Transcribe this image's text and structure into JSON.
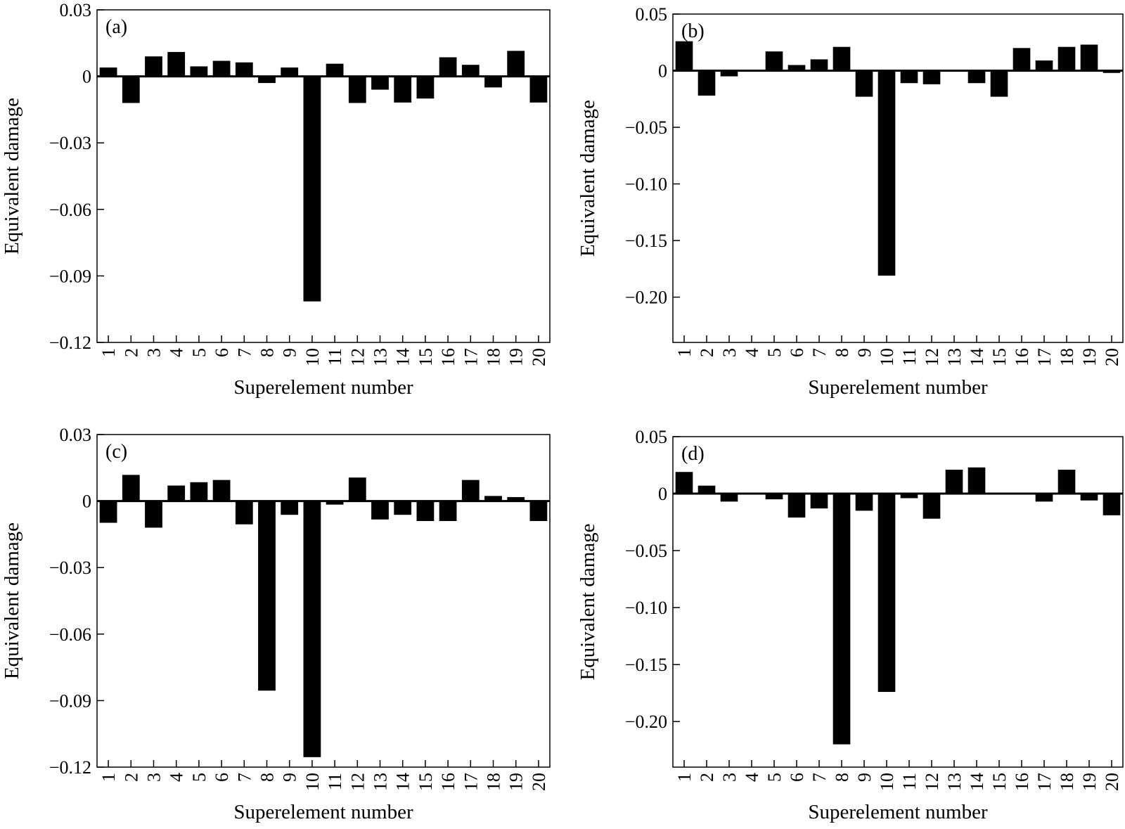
{
  "colors": {
    "bar": "#000000",
    "frame": "#000000",
    "background": "#ffffff"
  },
  "chart_data": [
    {
      "type": "bar",
      "panel_label": "(a)",
      "categories": [
        "1",
        "2",
        "3",
        "4",
        "5",
        "6",
        "7",
        "8",
        "9",
        "10",
        "11",
        "12",
        "13",
        "14",
        "15",
        "16",
        "17",
        "18",
        "19",
        "20"
      ],
      "values": [
        0.004,
        -0.012,
        0.009,
        0.011,
        0.0045,
        0.007,
        0.0063,
        -0.003,
        0.004,
        -0.1015,
        0.0057,
        -0.012,
        -0.006,
        -0.0118,
        -0.01,
        0.0086,
        0.0052,
        -0.005,
        0.0115,
        -0.0118
      ],
      "xlabel": "Superelement number",
      "ylabel": "Equivalent damage",
      "ylim": [
        -0.12,
        0.03
      ],
      "yticks": [
        0.03,
        0,
        -0.03,
        -0.06,
        -0.09,
        -0.12
      ],
      "ytick_labels": [
        "0.03",
        "0",
        "−0.03",
        "−0.06",
        "−0.09",
        "−0.12"
      ],
      "grid": false,
      "legend": "none"
    },
    {
      "type": "bar",
      "panel_label": "(b)",
      "categories": [
        "1",
        "2",
        "3",
        "4",
        "5",
        "6",
        "7",
        "8",
        "9",
        "10",
        "11",
        "12",
        "13",
        "14",
        "15",
        "16",
        "17",
        "18",
        "19",
        "20"
      ],
      "values": [
        0.026,
        -0.022,
        -0.005,
        0,
        0.017,
        0.005,
        0.01,
        0.021,
        -0.023,
        -0.181,
        -0.011,
        -0.012,
        0,
        -0.011,
        -0.023,
        0.02,
        0.009,
        0.021,
        0.023,
        -0.002
      ],
      "xlabel": "Superelement number",
      "ylabel": "Equivalent damage",
      "ylim": [
        -0.24,
        0.05
      ],
      "yticks": [
        0.05,
        0,
        -0.05,
        -0.1,
        -0.15,
        -0.2
      ],
      "ytick_labels": [
        "0.05",
        "0",
        "−0.05",
        "−0.10",
        "−0.15",
        "−0.20"
      ],
      "grid": false,
      "legend": "none"
    },
    {
      "type": "bar",
      "panel_label": "(c)",
      "categories": [
        "1",
        "2",
        "3",
        "4",
        "5",
        "6",
        "7",
        "8",
        "9",
        "10",
        "11",
        "12",
        "13",
        "14",
        "15",
        "16",
        "17",
        "18",
        "19",
        "20"
      ],
      "values": [
        -0.0098,
        0.0118,
        -0.012,
        0.007,
        0.0085,
        0.0095,
        -0.0105,
        -0.0855,
        -0.0062,
        -0.1155,
        -0.0016,
        0.0106,
        -0.0083,
        -0.0062,
        -0.009,
        -0.009,
        0.0095,
        0.0023,
        0.0018,
        -0.009
      ],
      "xlabel": "Superelement number",
      "ylabel": "Equivalent damage",
      "ylim": [
        -0.12,
        0.03
      ],
      "yticks": [
        0.03,
        0,
        -0.03,
        -0.06,
        -0.09,
        -0.12
      ],
      "ytick_labels": [
        "0.03",
        "0",
        "−0.03",
        "−0.06",
        "−0.09",
        "−0.12"
      ],
      "grid": false,
      "legend": "none"
    },
    {
      "type": "bar",
      "panel_label": "(d)",
      "categories": [
        "1",
        "2",
        "3",
        "4",
        "5",
        "6",
        "7",
        "8",
        "9",
        "10",
        "11",
        "12",
        "13",
        "14",
        "15",
        "16",
        "17",
        "18",
        "19",
        "20"
      ],
      "values": [
        0.019,
        0.007,
        -0.007,
        0,
        -0.005,
        -0.021,
        -0.013,
        -0.22,
        -0.015,
        -0.174,
        -0.004,
        -0.022,
        0.021,
        0.023,
        0,
        0,
        -0.007,
        0.021,
        -0.006,
        -0.019
      ],
      "xlabel": "Superelement number",
      "ylabel": "Equivalent damage",
      "ylim": [
        -0.24,
        0.05
      ],
      "yticks": [
        0.05,
        0,
        -0.05,
        -0.1,
        -0.15,
        -0.2
      ],
      "ytick_labels": [
        "0.05",
        "0",
        "−0.05",
        "−0.10",
        "−0.15",
        "−0.20"
      ],
      "grid": false,
      "legend": "none"
    }
  ]
}
